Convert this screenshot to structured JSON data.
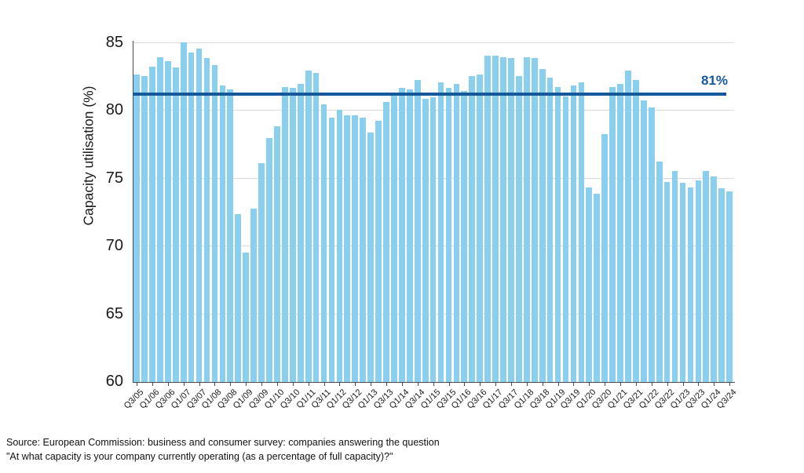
{
  "chart_data": {
    "type": "bar",
    "title": "",
    "ylabel": "Capacity utilisation (%)",
    "ylim": [
      60,
      85
    ],
    "yticks": [
      85,
      80,
      75,
      70,
      65,
      60
    ],
    "grid": "horizontal gridlines at 65,70,75,80,85",
    "legend": "none",
    "bar_color": "#8BCFEF",
    "axis_color": "#4a4a4a",
    "gridline_color": "#dcdcdc",
    "reference_line": {
      "value": 81,
      "label": "81%",
      "color": "#15579B"
    },
    "x": [
      "Q3/05",
      "Q4/05",
      "Q1/06",
      "Q2/06",
      "Q3/06",
      "Q4/06",
      "Q1/07",
      "Q2/07",
      "Q3/07",
      "Q4/07",
      "Q1/08",
      "Q2/08",
      "Q3/08",
      "Q4/08",
      "Q1/09",
      "Q2/09",
      "Q3/09",
      "Q4/09",
      "Q1/10",
      "Q2/10",
      "Q3/10",
      "Q4/10",
      "Q1/11",
      "Q2/11",
      "Q3/11",
      "Q4/11",
      "Q1/12",
      "Q2/12",
      "Q3/12",
      "Q4/12",
      "Q1/13",
      "Q2/13",
      "Q3/13",
      "Q4/13",
      "Q1/14",
      "Q2/14",
      "Q3/14",
      "Q4/14",
      "Q1/15",
      "Q2/15",
      "Q3/15",
      "Q4/15",
      "Q1/16",
      "Q2/16",
      "Q3/16",
      "Q4/16",
      "Q1/17",
      "Q2/17",
      "Q3/17",
      "Q4/17",
      "Q1/18",
      "Q2/18",
      "Q3/18",
      "Q4/18",
      "Q1/19",
      "Q2/19",
      "Q3/19",
      "Q4/19",
      "Q1/20",
      "Q2/20",
      "Q3/20",
      "Q4/20",
      "Q1/21",
      "Q2/21",
      "Q3/21",
      "Q4/21",
      "Q1/22",
      "Q2/22",
      "Q3/22",
      "Q4/22",
      "Q1/23",
      "Q2/23",
      "Q3/23",
      "Q4/23",
      "Q1/24",
      "Q2/24",
      "Q3/24"
    ],
    "x_tick_labels": [
      "Q3/05",
      "Q1/06",
      "Q3/06",
      "Q1/07",
      "Q3/07",
      "Q1/08",
      "Q3/08",
      "Q1/09",
      "Q3/09",
      "Q1/10",
      "Q3/10",
      "Q1/11",
      "Q3/11",
      "Q1/12",
      "Q3/12",
      "Q1/13",
      "Q3/13",
      "Q1/14",
      "Q3/14",
      "Q1/15",
      "Q3/15",
      "Q1/16",
      "Q3/16",
      "Q1/17",
      "Q3/17",
      "Q1/18",
      "Q3/18",
      "Q1/19",
      "Q3/19",
      "Q1/20",
      "Q3/20",
      "Q1/21",
      "Q3/21",
      "Q1/22",
      "Q3/22",
      "Q1/23",
      "Q3/23",
      "Q1/24",
      "Q3/24"
    ],
    "series": [
      {
        "name": "Capacity utilisation (%)",
        "values": [
          82.6,
          82.5,
          83.2,
          83.9,
          83.6,
          83.1,
          85.0,
          84.2,
          84.5,
          83.8,
          83.3,
          81.8,
          81.5,
          72.3,
          69.5,
          72.7,
          76.1,
          77.9,
          78.8,
          81.7,
          81.6,
          81.9,
          82.9,
          82.7,
          80.4,
          79.4,
          80.0,
          79.6,
          79.6,
          79.4,
          78.3,
          79.2,
          80.6,
          81.2,
          81.6,
          81.5,
          82.2,
          80.8,
          80.9,
          82.0,
          81.6,
          81.9,
          81.4,
          82.5,
          82.6,
          84.0,
          84.0,
          83.9,
          83.8,
          82.5,
          83.9,
          83.8,
          83.0,
          82.4,
          81.7,
          81.0,
          81.8,
          82.0,
          74.3,
          73.8,
          78.2,
          81.7,
          81.9,
          82.9,
          82.2,
          80.7,
          80.2,
          76.2,
          74.7,
          75.5,
          74.6,
          74.3,
          74.8,
          75.5,
          75.1,
          74.2,
          74.0
        ]
      }
    ]
  },
  "footer": {
    "source_line1": "Source: European Commission: business and consumer survey: companies answering the question",
    "source_line2": "\"At what capacity is your company currently operating (as a percentage of full capacity)?\""
  }
}
